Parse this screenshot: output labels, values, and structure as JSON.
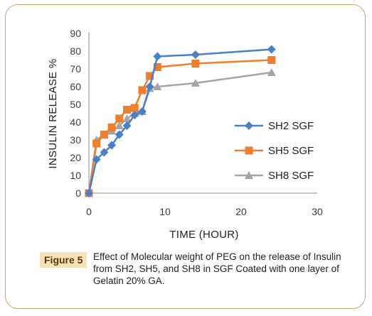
{
  "chart_data": {
    "type": "line",
    "xlabel": "TIME (HOUR)",
    "ylabel": "INSULIN RELEASE %",
    "xlim": [
      0,
      30
    ],
    "ylim": [
      0,
      90
    ],
    "xticks": [
      0,
      10,
      20,
      30
    ],
    "yticks": [
      0,
      10,
      20,
      30,
      40,
      50,
      60,
      70,
      80,
      90
    ],
    "grid": false,
    "legend_position": "right",
    "series": [
      {
        "name": "SH2 SGF",
        "color": "#4a7fc9",
        "marker": "diamond",
        "x": [
          0,
          1,
          2,
          3,
          4,
          5,
          6,
          7,
          8,
          9,
          14,
          24
        ],
        "y": [
          0,
          19,
          23,
          27,
          33,
          38,
          44,
          46,
          60,
          77,
          78,
          81
        ]
      },
      {
        "name": "SH5 SGF",
        "color": "#ee7d2c",
        "marker": "square",
        "x": [
          0,
          1,
          2,
          3,
          4,
          5,
          6,
          7,
          8,
          9,
          14,
          24
        ],
        "y": [
          0,
          28,
          33,
          37,
          42,
          47,
          48,
          58,
          66,
          71,
          73,
          75
        ]
      },
      {
        "name": "SH8 SGF",
        "color": "#a5a5a5",
        "marker": "triangle",
        "x": [
          0,
          1,
          2,
          3,
          4,
          5,
          6,
          7,
          8,
          9,
          14,
          24
        ],
        "y": [
          0,
          30,
          33,
          35,
          38,
          42,
          45,
          46,
          59,
          60,
          62,
          68
        ]
      }
    ]
  },
  "caption": {
    "label": "Figure 5",
    "text": "Effect of Molecular weight of PEG on the release of Insulin from SH2, SH5, and SH8 in SGF Coated with one layer of Gelatin 20% GA."
  }
}
